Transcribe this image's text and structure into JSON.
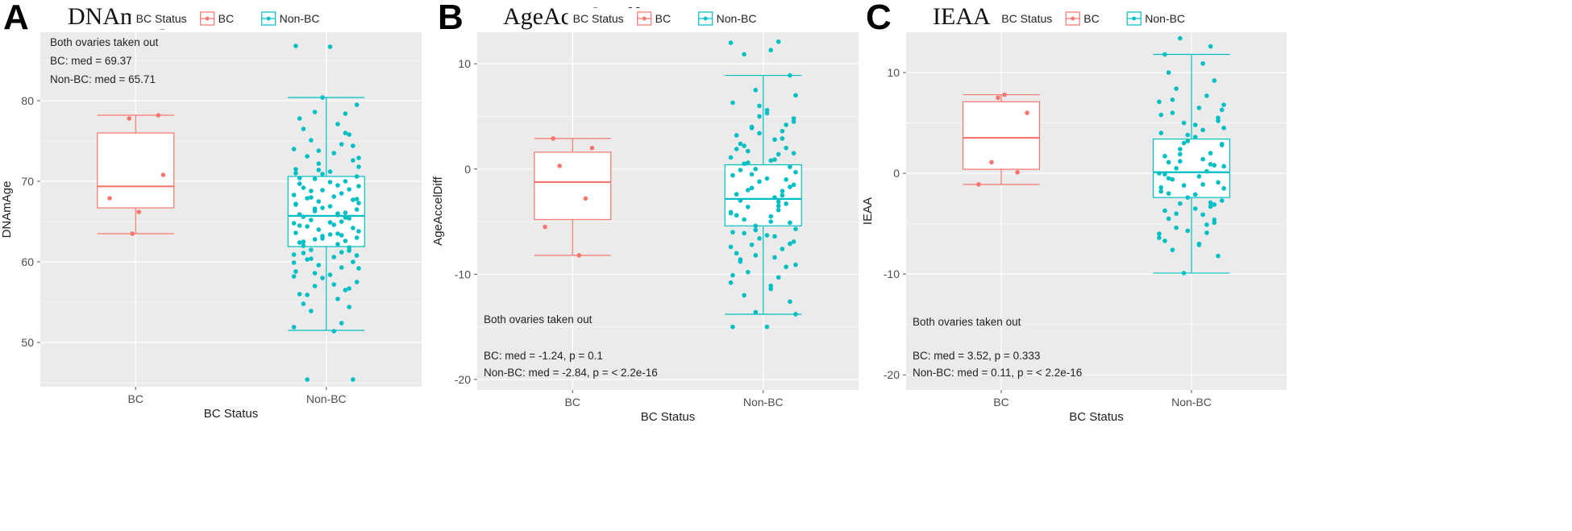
{
  "colors": {
    "bc": "#F8766D",
    "non_bc": "#00BFC4",
    "panel_bg": "#EBEBEB",
    "grid": "#FFFFFF",
    "text": "#333333"
  },
  "legend_title": "BC Status",
  "chart_data": [
    {
      "type": "boxplot",
      "panel_letter": "A",
      "title": "DNAmAge",
      "xlabel": "BC Status",
      "ylabel": "DNAmAge",
      "categories": [
        "BC",
        "Non-BC"
      ],
      "ylim": [
        44.5,
        88.5
      ],
      "yticks": [
        50,
        60,
        70,
        80
      ],
      "grid": true,
      "legend": {
        "title": "BC Status",
        "entries": [
          "BC",
          "Non-BC"
        ],
        "position": "top"
      },
      "annotations": [
        "Both ovaries taken out",
        "BC: med = 69.37",
        "Non-BC: med = 65.71"
      ],
      "annotation_position": "top-left",
      "boxes": [
        {
          "name": "BC",
          "whisker_low": 63.5,
          "q1": 66.7,
          "median": 69.37,
          "q3": 76.0,
          "whisker_high": 78.2
        },
        {
          "name": "Non-BC",
          "whisker_low": 51.5,
          "q1": 61.9,
          "median": 65.71,
          "q3": 70.6,
          "whisker_high": 80.4
        }
      ],
      "points": {
        "BC": [
          78.2,
          77.8,
          70.8,
          67.9,
          66.2,
          63.5
        ],
        "Non-BC": [
          86.8,
          86.7,
          80.4,
          79.5,
          78.6,
          78.4,
          77.8,
          77.1,
          76.5,
          75.8,
          75.1,
          74.6,
          74.0,
          73.5,
          73.1,
          72.6,
          72.2,
          71.8,
          71.5,
          71.2,
          70.9,
          70.6,
          70.3,
          70.0,
          69.7,
          69.5,
          69.2,
          69.0,
          68.8,
          68.5,
          68.3,
          68.1,
          67.9,
          67.7,
          67.5,
          67.3,
          67.1,
          66.9,
          66.7,
          66.5,
          66.3,
          66.1,
          65.9,
          65.8,
          65.6,
          65.4,
          65.2,
          65.0,
          64.8,
          64.6,
          64.4,
          64.2,
          64.0,
          63.8,
          63.6,
          63.4,
          63.2,
          63.0,
          62.8,
          62.6,
          62.4,
          62.2,
          62.0,
          61.8,
          61.5,
          61.2,
          60.9,
          60.6,
          60.3,
          60.0,
          59.6,
          59.2,
          58.8,
          58.4,
          58.0,
          57.5,
          57.0,
          56.5,
          56.0,
          55.4,
          54.8,
          54.4,
          53.9,
          52.4,
          51.9,
          51.4,
          45.4,
          45.4,
          73.8,
          72.9,
          71.0,
          69.9,
          68.9,
          67.8,
          66.6,
          65.5,
          64.5,
          63.5,
          62.5,
          61.4,
          60.4,
          59.3,
          58.2,
          57.2,
          55.9,
          74.4,
          71.4,
          69.4,
          67.2,
          64.9,
          62.9,
          60.8,
          58.6,
          76.0,
          70.4,
          66.0,
          61.1,
          56.7,
          68.0,
          63.3,
          59.9
        ]
      }
    },
    {
      "type": "boxplot",
      "panel_letter": "B",
      "title": "AgeAccelDiff",
      "xlabel": "BC Status",
      "ylabel": "AgeAccelDiff",
      "categories": [
        "BC",
        "Non-BC"
      ],
      "ylim": [
        -21,
        13
      ],
      "yticks": [
        -20,
        -10,
        0,
        10
      ],
      "grid": true,
      "legend": {
        "title": "BC Status",
        "entries": [
          "BC",
          "Non-BC"
        ],
        "position": "top"
      },
      "annotations": [
        "Both ovaries taken out",
        "BC: med = -1.24, p = 0.1",
        "Non-BC: med = -2.84, p = < 2.2e-16"
      ],
      "annotation_position": "bottom-left",
      "boxes": [
        {
          "name": "BC",
          "whisker_low": -8.2,
          "q1": -4.8,
          "median": -1.24,
          "q3": 1.6,
          "whisker_high": 2.9
        },
        {
          "name": "Non-BC",
          "whisker_low": -13.8,
          "q1": -5.4,
          "median": -2.84,
          "q3": 0.4,
          "whisker_high": 8.9
        }
      ],
      "points": {
        "BC": [
          2.9,
          2.0,
          0.3,
          -2.8,
          -5.5,
          -8.2
        ],
        "Non-BC": [
          12.1,
          12.0,
          11.3,
          10.9,
          8.9,
          7.5,
          7.0,
          6.3,
          5.6,
          5.0,
          4.5,
          4.0,
          3.6,
          3.2,
          2.8,
          2.4,
          2.0,
          1.7,
          1.4,
          1.1,
          0.8,
          0.5,
          0.2,
          0.0,
          -0.3,
          -0.6,
          -0.9,
          -1.2,
          -1.5,
          -1.8,
          -2.1,
          -2.4,
          -2.7,
          -3.0,
          -3.3,
          -3.6,
          -3.9,
          -4.2,
          -4.5,
          -4.8,
          -5.1,
          -5.4,
          -5.7,
          -6.0,
          -6.3,
          -6.6,
          -6.9,
          -7.2,
          -7.6,
          -8.0,
          -8.4,
          -8.8,
          -9.3,
          -9.8,
          -10.3,
          -10.8,
          -11.4,
          -12.0,
          -12.6,
          -13.6,
          -13.8,
          -15.0,
          -15.0,
          6.0,
          4.8,
          3.9,
          2.9,
          1.9,
          0.9,
          -0.1,
          -1.0,
          -2.0,
          -3.1,
          -4.1,
          -5.0,
          -6.1,
          -7.1,
          -8.2,
          -9.1,
          -10.1,
          5.3,
          3.4,
          1.5,
          -0.5,
          -2.5,
          -4.4,
          -6.4,
          -8.6,
          4.2,
          0.6,
          -3.5,
          -7.4,
          -11.1,
          2.2,
          -1.7,
          -5.8
        ]
      }
    },
    {
      "type": "boxplot",
      "panel_letter": "C",
      "title": "IEAA",
      "xlabel": "BC Status",
      "ylabel": "IEAA",
      "categories": [
        "BC",
        "Non-BC"
      ],
      "ylim": [
        -21.5,
        14
      ],
      "yticks": [
        -20,
        -10,
        0,
        10
      ],
      "grid": true,
      "legend": {
        "title": "BC Status",
        "entries": [
          "BC",
          "Non-BC"
        ],
        "position": "top"
      },
      "annotations": [
        "Both ovaries taken out",
        "BC: med = 3.52, p = 0.333",
        "Non-BC: med = 0.11, p = < 2.2e-16"
      ],
      "annotation_position": "bottom-left",
      "boxes": [
        {
          "name": "BC",
          "whisker_low": -1.1,
          "q1": 0.4,
          "median": 3.52,
          "q3": 7.1,
          "whisker_high": 7.8
        },
        {
          "name": "Non-BC",
          "whisker_low": -9.9,
          "q1": -2.4,
          "median": 0.11,
          "q3": 3.4,
          "whisker_high": 11.8
        }
      ],
      "points": {
        "BC": [
          7.8,
          7.5,
          6.0,
          1.1,
          0.1,
          -1.1
        ],
        "Non-BC": [
          13.4,
          12.6,
          11.8,
          10.9,
          10.0,
          9.2,
          8.4,
          7.7,
          7.1,
          6.5,
          6.0,
          5.5,
          5.0,
          4.5,
          4.0,
          3.6,
          3.2,
          2.8,
          2.4,
          2.0,
          1.7,
          1.4,
          1.1,
          0.8,
          0.5,
          0.2,
          0.0,
          -0.3,
          -0.6,
          -0.9,
          -1.2,
          -1.5,
          -1.8,
          -2.1,
          -2.4,
          -2.7,
          -3.0,
          -3.3,
          -3.7,
          -4.1,
          -4.5,
          -4.9,
          -5.4,
          -5.9,
          -6.4,
          -7.0,
          -7.6,
          -8.2,
          -9.9,
          6.8,
          5.8,
          4.8,
          3.8,
          2.9,
          1.9,
          0.9,
          -0.1,
          -1.1,
          -2.0,
          -3.1,
          -4.0,
          -5.1,
          -6.0,
          -7.1,
          7.3,
          5.2,
          3.0,
          0.7,
          -1.4,
          -3.5,
          -5.7,
          6.3,
          1.2,
          -2.9,
          -6.7,
          4.3,
          -0.5,
          -4.6
        ]
      }
    }
  ]
}
